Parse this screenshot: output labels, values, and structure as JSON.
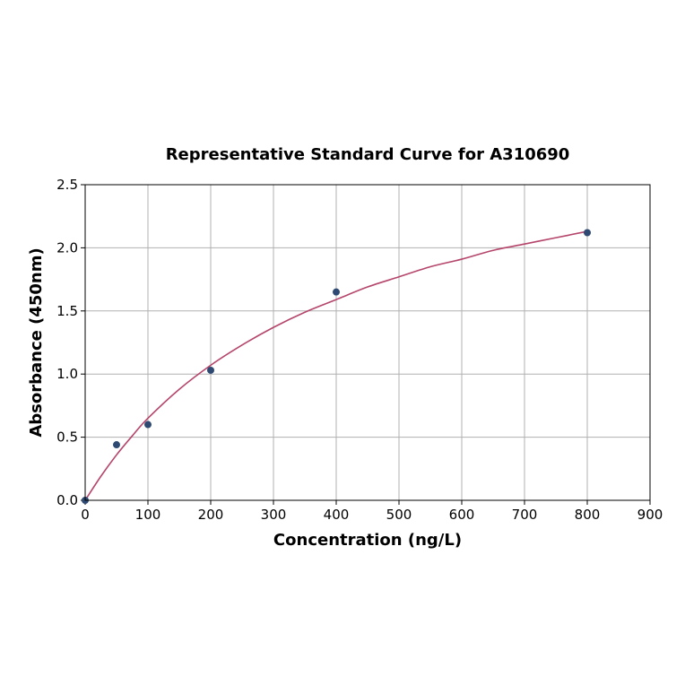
{
  "chart_data": {
    "type": "scatter",
    "title": "Representative Standard Curve for A310690",
    "xlabel": "Concentration (ng/L)",
    "ylabel": "Absorbance (450nm)",
    "xlim": [
      0,
      900
    ],
    "ylim": [
      0,
      2.5
    ],
    "x_ticks": [
      0,
      100,
      200,
      300,
      400,
      500,
      600,
      700,
      800,
      900
    ],
    "y_ticks": [
      0.0,
      0.5,
      1.0,
      1.5,
      2.0,
      2.5
    ],
    "x_tick_labels": [
      "0",
      "100",
      "200",
      "300",
      "400",
      "500",
      "600",
      "700",
      "800",
      "900"
    ],
    "y_tick_labels": [
      "0.0",
      "0.5",
      "1.0",
      "1.5",
      "2.0",
      "2.5"
    ],
    "grid": true,
    "points": {
      "x": [
        0,
        50,
        100,
        200,
        400,
        800
      ],
      "y": [
        0.0,
        0.44,
        0.6,
        1.03,
        1.65,
        2.12
      ],
      "color": "#2e4a72"
    },
    "fit_curve": {
      "x": [
        0,
        25,
        50,
        75,
        100,
        150,
        200,
        250,
        300,
        350,
        400,
        450,
        500,
        550,
        600,
        650,
        700,
        750,
        800
      ],
      "y": [
        0.0,
        0.19,
        0.36,
        0.51,
        0.65,
        0.88,
        1.07,
        1.23,
        1.37,
        1.49,
        1.59,
        1.69,
        1.77,
        1.85,
        1.91,
        1.98,
        2.03,
        2.08,
        2.13
      ],
      "color": "#b5456b"
    }
  }
}
